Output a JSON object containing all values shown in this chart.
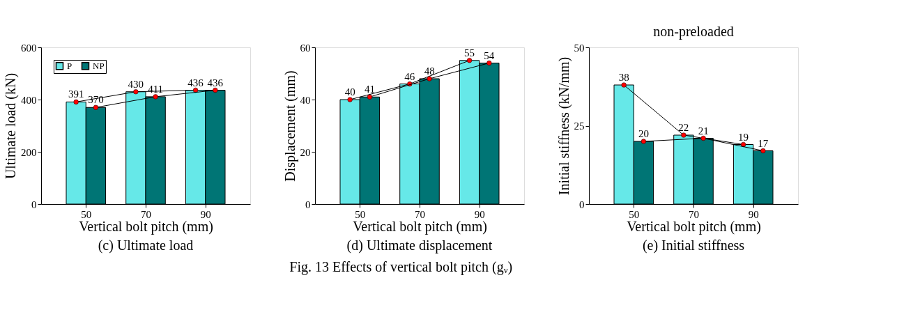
{
  "chart_data": [
    {
      "type": "bar",
      "title": "(c) Ultimate load",
      "xlabel": "Vertical bolt pitch (mm)",
      "ylabel": "Ultimate load (kN)",
      "x": [
        50,
        70,
        90
      ],
      "series": [
        {
          "name": "P",
          "color": "#66e8e8",
          "values": [
            391,
            430,
            436
          ]
        },
        {
          "name": "NP",
          "color": "#007575",
          "values": [
            370,
            411,
            436
          ]
        },
        {
          "type": "line",
          "color": "#000000",
          "marker": "circle",
          "x": [
            46.7,
            66.7,
            86.7
          ],
          "values": [
            391,
            430,
            436
          ],
          "value_labels": [
            null,
            null,
            null
          ]
        },
        {
          "type": "line",
          "color": "#000000",
          "marker": "circle",
          "x": [
            53.3,
            73.3,
            93.3
          ],
          "values": [
            370,
            411,
            436
          ],
          "value_labels": [
            null,
            null,
            null
          ]
        }
      ],
      "xlim": [
        35,
        105
      ],
      "xticks": [
        50,
        70,
        90
      ],
      "ylim": [
        0,
        600
      ],
      "yticks": [
        0,
        200,
        400,
        600
      ],
      "grid": false,
      "legend": "top left",
      "data_labels": true
    },
    {
      "type": "bar",
      "title": "(d) Ultimate displacement",
      "xlabel": "Vertical bolt pitch (mm)",
      "ylabel": "Displacement (mm)",
      "x": [
        50,
        70,
        90
      ],
      "series": [
        {
          "name": "P",
          "color": "#66e8e8",
          "values": [
            40,
            46,
            55
          ]
        },
        {
          "name": "NP",
          "color": "#007575",
          "values": [
            41,
            48,
            54
          ]
        },
        {
          "type": "line",
          "color": "#000000",
          "marker": "circle",
          "x": [
            46.7,
            66.7,
            86.7
          ],
          "values": [
            40,
            46,
            55
          ],
          "value_labels": [
            null,
            null,
            null
          ]
        },
        {
          "type": "line",
          "color": "#000000",
          "marker": "circle",
          "x": [
            53.3,
            73.3,
            93.3
          ],
          "values": [
            41,
            48,
            54
          ],
          "value_labels": [
            null,
            null,
            null
          ]
        }
      ],
      "xlim": [
        35,
        105
      ],
      "xticks": [
        50,
        70,
        90
      ],
      "ylim": [
        0,
        60
      ],
      "yticks": [
        0,
        20,
        40,
        60
      ],
      "grid": false,
      "legend": "top left",
      "data_labels": true,
      "annotations": [
        "Fig. 13 Effects of vertical bolt pitch (gᵥ)"
      ]
    },
    {
      "type": "bar",
      "title": "(e) Initial stiffness",
      "xlabel": "Vertical bolt pitch (mm)",
      "ylabel": "Initial stiffness (kN/mm)",
      "x": [
        50,
        70,
        90
      ],
      "series": [
        {
          "name": "P",
          "color": "#66e8e8",
          "values": [
            38,
            22,
            19
          ]
        },
        {
          "name": "NP",
          "color": "#007575",
          "values": [
            20,
            21,
            17
          ]
        },
        {
          "type": "line",
          "color": "#000000",
          "marker": "circle",
          "x": [
            46.7,
            66.7,
            86.7
          ],
          "values": [
            38,
            22,
            19
          ],
          "value_labels": [
            null,
            null,
            null
          ]
        },
        {
          "type": "line",
          "color": "#000000",
          "marker": "circle",
          "x": [
            53.3,
            73.3,
            93.3
          ],
          "values": [
            20,
            21,
            17
          ],
          "value_labels": [
            null,
            null,
            null
          ]
        }
      ],
      "xlim": [
        35,
        105
      ],
      "xticks": [
        50,
        70,
        90
      ],
      "ylim": [
        0,
        50
      ],
      "yticks": [
        0,
        25,
        50
      ],
      "grid": false,
      "legend": "top left",
      "data_labels": true,
      "annotations": [
        "non-preloaded"
      ]
    }
  ]
}
